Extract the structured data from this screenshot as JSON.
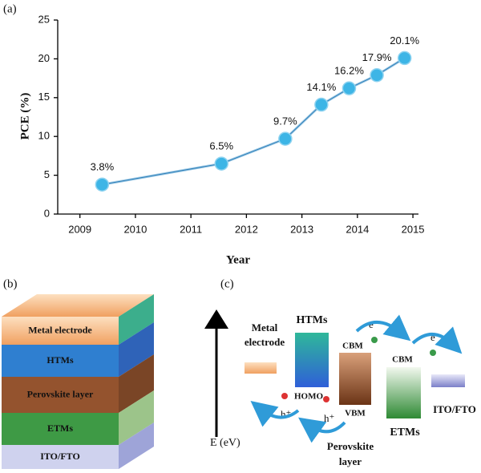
{
  "panel_a": {
    "label": "(a)"
  },
  "chart_data": {
    "type": "line",
    "x_label": "Year",
    "y_label": "PCE (%)",
    "x": [
      2009.4,
      2011.55,
      2012.7,
      2013.35,
      2013.85,
      2014.35,
      2014.85
    ],
    "series": [
      {
        "name": "PCE",
        "color": "#3db5e6",
        "values": [
          3.8,
          6.5,
          9.7,
          14.1,
          16.2,
          17.9,
          20.1
        ],
        "value_labels": [
          "3.8%",
          "6.5%",
          "9.7%",
          "14.1%",
          "16.2%",
          "17.9%",
          "20.1%"
        ]
      }
    ],
    "xlim": [
      2008.6,
      2015.1
    ],
    "xticks": [
      2009,
      2010,
      2011,
      2012,
      2013,
      2014,
      2015
    ],
    "ylim": [
      0,
      25
    ],
    "yticks": [
      0,
      5,
      10,
      15,
      20,
      25
    ],
    "grid": false,
    "legend": false
  },
  "panel_b": {
    "label": "(b)",
    "layers": [
      "Metal electrode",
      "HTMs",
      "Perovskite layer",
      "ETMs",
      "ITO/FTO"
    ]
  },
  "panel_c": {
    "label": "(c)",
    "axis": "E (eV)",
    "metal": [
      "Metal",
      "electrode"
    ],
    "htms": "HTMs",
    "homo": "HOMO",
    "cbm1": "CBM",
    "vbm": "VBM",
    "perovskite": [
      "Perovskite",
      "layer"
    ],
    "cbm2": "CBM",
    "etms": "ETMs",
    "ito": "ITO/FTO",
    "electron": "e⁻",
    "hole": "h⁺"
  }
}
